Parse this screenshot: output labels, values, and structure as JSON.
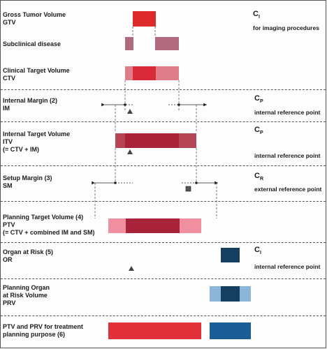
{
  "rows": [
    {
      "id": "gtv",
      "lines": [
        "Gross Tumor Volume",
        "GTV"
      ],
      "symbol": "C",
      "sub": "I",
      "note": "for imaging procedures"
    },
    {
      "id": "subclinical",
      "lines": [
        "Subclinical disease"
      ]
    },
    {
      "id": "ctv",
      "lines": [
        "Clinical Target Volume",
        "CTV"
      ]
    },
    {
      "id": "im",
      "lines": [
        "Internal Margin (2)",
        "IM"
      ],
      "symbol": "C",
      "sub": "P",
      "note": "internal reference point"
    },
    {
      "id": "itv",
      "lines": [
        "Internal Target Volume",
        "ITV",
        "(= CTV + IM)"
      ],
      "symbol": "C",
      "sub": "P",
      "note": "internal reference point"
    },
    {
      "id": "sm",
      "lines": [
        "Setup Margin (3)",
        "SM"
      ],
      "symbol": "C",
      "sub": "R",
      "note": "external reference point"
    },
    {
      "id": "ptv",
      "lines": [
        "Planning Target Volume (4)",
        "PTV",
        "(= CTV + combined IM and SM)"
      ]
    },
    {
      "id": "or",
      "lines": [
        "Organ at Risk (5)",
        "OR"
      ],
      "symbol": "C",
      "sub": "I",
      "note": "internal reference point"
    },
    {
      "id": "prv",
      "lines": [
        "Planning Organ",
        "at Risk Volume",
        "PRV"
      ]
    },
    {
      "id": "final",
      "lines": [
        "PTV and PRV for  treatment",
        "planning purpose (6)"
      ]
    }
  ],
  "colors": {
    "gtv_red": "#dd2a2a",
    "subclinical": "#b06a7e",
    "ctv_pink": "#e07d8a",
    "itv_dark": "#a8233a",
    "ptv_light": "#ef8fa0",
    "or_navy": "#163e5e",
    "prv_light": "#8db5d8",
    "final_red": "#e0303a",
    "final_blue": "#1b5d94"
  },
  "icons": [
    "triangle-marker-icon",
    "square-marker-icon",
    "arrow-icon"
  ]
}
